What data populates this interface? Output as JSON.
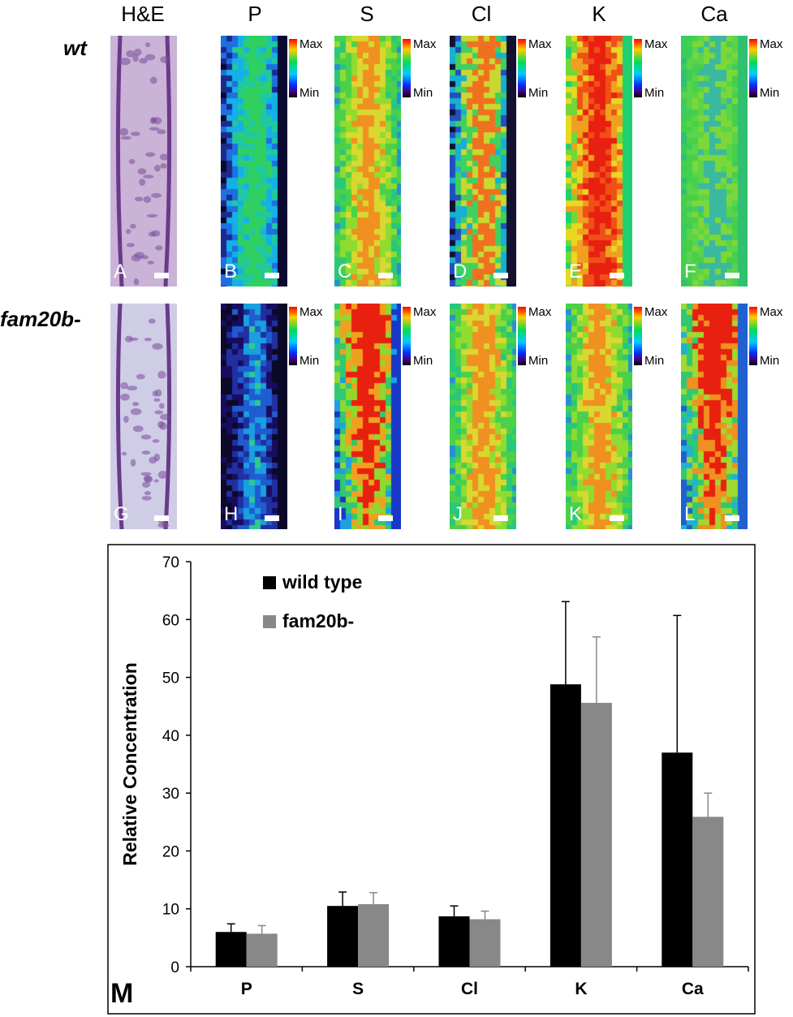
{
  "figure": {
    "column_headers": [
      "H&E",
      "P",
      "S",
      "Cl",
      "K",
      "Ca"
    ],
    "row_labels": [
      "wt",
      "fam20b-"
    ],
    "colorbar": {
      "max_label": "Max",
      "min_label": "Min"
    },
    "panels_row1": [
      {
        "letter": "A",
        "kind": "he",
        "tone": "#c9b3d6"
      },
      {
        "letter": "B",
        "kind": "map",
        "palette": "sparse-blue"
      },
      {
        "letter": "C",
        "kind": "map",
        "palette": "green-yellow"
      },
      {
        "letter": "D",
        "kind": "map",
        "palette": "mixed"
      },
      {
        "letter": "E",
        "kind": "map",
        "palette": "hot-center"
      },
      {
        "letter": "F",
        "kind": "map",
        "palette": "green-uniform"
      }
    ],
    "panels_row2": [
      {
        "letter": "G",
        "kind": "he",
        "tone": "#cfcde6"
      },
      {
        "letter": "H",
        "kind": "map",
        "palette": "dark-blue"
      },
      {
        "letter": "I",
        "kind": "map",
        "palette": "red-top"
      },
      {
        "letter": "J",
        "kind": "map",
        "palette": "green-yellow"
      },
      {
        "letter": "K",
        "kind": "map",
        "palette": "green-yellow"
      },
      {
        "letter": "L",
        "kind": "map",
        "palette": "red-top-green"
      }
    ],
    "panel_m_label": "M"
  },
  "chart_data": {
    "type": "bar",
    "categories": [
      "P",
      "S",
      "Cl",
      "K",
      "Ca"
    ],
    "ylabel": "Relative Concentration",
    "xlabel": "",
    "ylim": [
      0,
      70
    ],
    "yticks": [
      0,
      10,
      20,
      30,
      40,
      50,
      60,
      70
    ],
    "legend_position": "top-left",
    "series": [
      {
        "name": "wild type",
        "color": "#000000",
        "values": [
          6.0,
          10.5,
          8.7,
          48.8,
          37.0
        ],
        "errors": [
          1.4,
          2.4,
          1.8,
          14.3,
          23.7
        ]
      },
      {
        "name": "fam20b-",
        "color": "#888888",
        "values": [
          5.7,
          10.8,
          8.2,
          45.6,
          25.9
        ],
        "errors": [
          1.4,
          2.0,
          1.4,
          11.4,
          4.1
        ]
      }
    ]
  }
}
